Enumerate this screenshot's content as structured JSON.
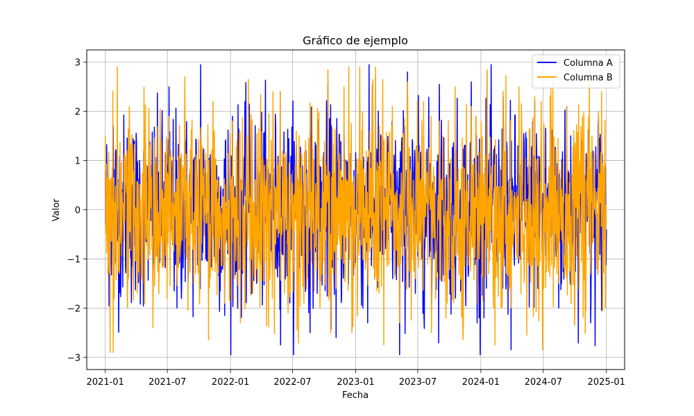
{
  "chart_data": {
    "type": "line",
    "title": "Gráfico de ejemplo",
    "xlabel": "Fecha",
    "ylabel": "Valor",
    "x_type": "date",
    "x_start": "2021-01-01",
    "x_end": "2025-01-01",
    "xlim": [
      "2020-11-08",
      "2025-02-23"
    ],
    "ylim": [
      -3.25,
      3.25
    ],
    "x_ticks": [
      "2021-01",
      "2021-07",
      "2022-01",
      "2022-07",
      "2023-01",
      "2023-07",
      "2024-01",
      "2024-07",
      "2025-01"
    ],
    "y_ticks": [
      -3,
      -2,
      -1,
      0,
      1,
      2,
      3
    ],
    "grid": true,
    "legend_position": "top-right",
    "series": [
      {
        "name": "Columna A",
        "color": "#0000ff",
        "frequency": "daily",
        "distribution": "approximately standard normal (mean 0, std 1)",
        "observed_min": -2.95,
        "observed_max": 2.95,
        "sample_values": [
          0.8,
          1.7,
          -1.2,
          2.0,
          -0.6,
          1.4,
          -1.8,
          0.3,
          2.5,
          -2.0,
          1.1,
          -0.4,
          2.95,
          -1.6,
          0.9,
          -2.15,
          1.9,
          -0.8,
          2.1,
          -1.5,
          0.6,
          -1.3,
          2.4,
          -1.9,
          1.3,
          -0.2,
          1.8,
          -1.1,
          2.55,
          -2.6,
          1.7,
          -0.9,
          2.2,
          -2.3,
          2.7,
          -1.4,
          0.5,
          -2.95,
          2.8,
          -1.7,
          1.5,
          -2.1,
          2.55,
          -1.2,
          0.9,
          -1.6,
          2.6,
          -2.2,
          2.8,
          -1.0,
          2.3,
          -2.85,
          1.6,
          -1.3,
          2.2,
          -0.7,
          1.9,
          -2.0,
          2.1,
          -1.8,
          1.4,
          -2.3,
          1.9,
          -0.4
        ]
      },
      {
        "name": "Columna B",
        "color": "#ffa500",
        "frequency": "daily",
        "distribution": "approximately standard normal (mean 0, std 1)",
        "observed_min": -2.9,
        "observed_max": 2.9,
        "sample_values": [
          1.5,
          -2.9,
          0.7,
          2.1,
          -1.7,
          1.2,
          -2.4,
          0.4,
          1.9,
          -1.3,
          2.7,
          -0.8,
          1.4,
          -2.65,
          0.6,
          -1.9,
          1.8,
          -2.3,
          2.65,
          -1.2,
          0.9,
          -1.8,
          2.4,
          -2.1,
          1.6,
          -0.5,
          2.1,
          -2.0,
          2.85,
          -1.6,
          2.5,
          -2.5,
          2.9,
          -1.1,
          2.9,
          -2.75,
          1.7,
          -2.3,
          2.6,
          -1.4,
          2.2,
          -2.5,
          1.8,
          -1.9,
          2.5,
          -2.3,
          2.1,
          -1.0,
          2.85,
          -2.75,
          2.4,
          -2.0,
          2.5,
          -2.55,
          2.3,
          -2.85,
          2.5,
          -1.5,
          2.1,
          -2.35,
          1.9,
          -0.9,
          2.0,
          -0.3
        ]
      }
    ]
  }
}
